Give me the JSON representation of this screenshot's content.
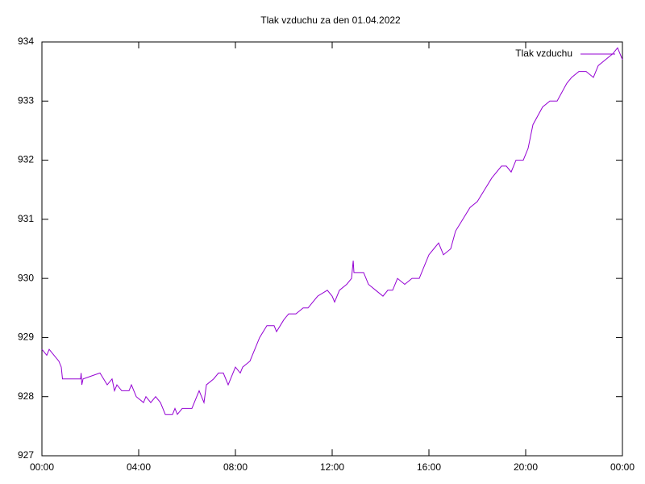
{
  "chart_data": {
    "type": "line",
    "title": "Tlak vzduchu za den 01.04.2022",
    "x": [
      0,
      0.2,
      0.3,
      0.5,
      0.7,
      0.8,
      0.85,
      1.6,
      1.62,
      1.65,
      1.7,
      2.4,
      2.7,
      2.9,
      3.0,
      3.1,
      3.3,
      3.6,
      3.7,
      3.9,
      4.2,
      4.3,
      4.5,
      4.7,
      4.9,
      5.0,
      5.1,
      5.4,
      5.5,
      5.6,
      5.8,
      6.2,
      6.4,
      6.5,
      6.7,
      6.8,
      7.1,
      7.3,
      7.5,
      7.7,
      8.0,
      8.2,
      8.3,
      8.6,
      8.8,
      9.0,
      9.3,
      9.6,
      9.7,
      10.0,
      10.2,
      10.5,
      10.8,
      11.0,
      11.2,
      11.4,
      11.8,
      12.0,
      12.1,
      12.3,
      12.6,
      12.8,
      12.87,
      12.9,
      13.1,
      13.3,
      13.5,
      13.8,
      14.1,
      14.3,
      14.5,
      14.7,
      15.0,
      15.3,
      15.6,
      15.8,
      16.0,
      16.2,
      16.4,
      16.6,
      16.9,
      17.1,
      17.4,
      17.7,
      18.0,
      18.3,
      18.6,
      19.0,
      19.2,
      19.4,
      19.6,
      19.9,
      20.1,
      20.3,
      20.7,
      21.0,
      21.3,
      21.7,
      21.9,
      22.2,
      22.5,
      22.8,
      23.0,
      23.3,
      23.6,
      23.8,
      24.0
    ],
    "series": [
      {
        "name": "Tlak vzduchu",
        "color": "#9400d3",
        "values": [
          928.8,
          928.7,
          928.8,
          928.7,
          928.6,
          928.5,
          928.3,
          928.3,
          928.4,
          928.2,
          928.3,
          928.4,
          928.2,
          928.3,
          928.1,
          928.2,
          928.1,
          928.1,
          928.2,
          928.0,
          927.9,
          928.0,
          927.9,
          928.0,
          927.9,
          927.8,
          927.7,
          927.7,
          927.8,
          927.7,
          927.8,
          927.8,
          928.0,
          928.1,
          927.9,
          928.2,
          928.3,
          928.4,
          928.4,
          928.2,
          928.5,
          928.4,
          928.5,
          928.6,
          928.8,
          929.0,
          929.2,
          929.2,
          929.1,
          929.3,
          929.4,
          929.4,
          929.5,
          929.5,
          929.6,
          929.7,
          929.8,
          929.7,
          929.6,
          929.8,
          929.9,
          930.0,
          930.3,
          930.1,
          930.1,
          930.1,
          929.9,
          929.8,
          929.7,
          929.8,
          929.8,
          930.0,
          929.9,
          930.0,
          930.0,
          930.2,
          930.4,
          930.5,
          930.6,
          930.4,
          930.5,
          930.8,
          931.0,
          931.2,
          931.3,
          931.5,
          931.7,
          931.9,
          931.9,
          931.8,
          932.0,
          932.0,
          932.2,
          932.6,
          932.9,
          933.0,
          933.0,
          933.3,
          933.4,
          933.5,
          933.5,
          933.4,
          933.6,
          933.7,
          933.8,
          933.9,
          933.7
        ]
      }
    ],
    "xlim": [
      0,
      24
    ],
    "xticks": [
      {
        "value": 0,
        "label": "00:00"
      },
      {
        "value": 4,
        "label": "04:00"
      },
      {
        "value": 8,
        "label": "08:00"
      },
      {
        "value": 12,
        "label": "12:00"
      },
      {
        "value": 16,
        "label": "16:00"
      },
      {
        "value": 20,
        "label": "20:00"
      },
      {
        "value": 24,
        "label": "00:00"
      }
    ],
    "ylim": [
      927,
      934
    ],
    "yticks": [
      927,
      928,
      929,
      930,
      931,
      932,
      933,
      934
    ],
    "legend": "upper right"
  }
}
